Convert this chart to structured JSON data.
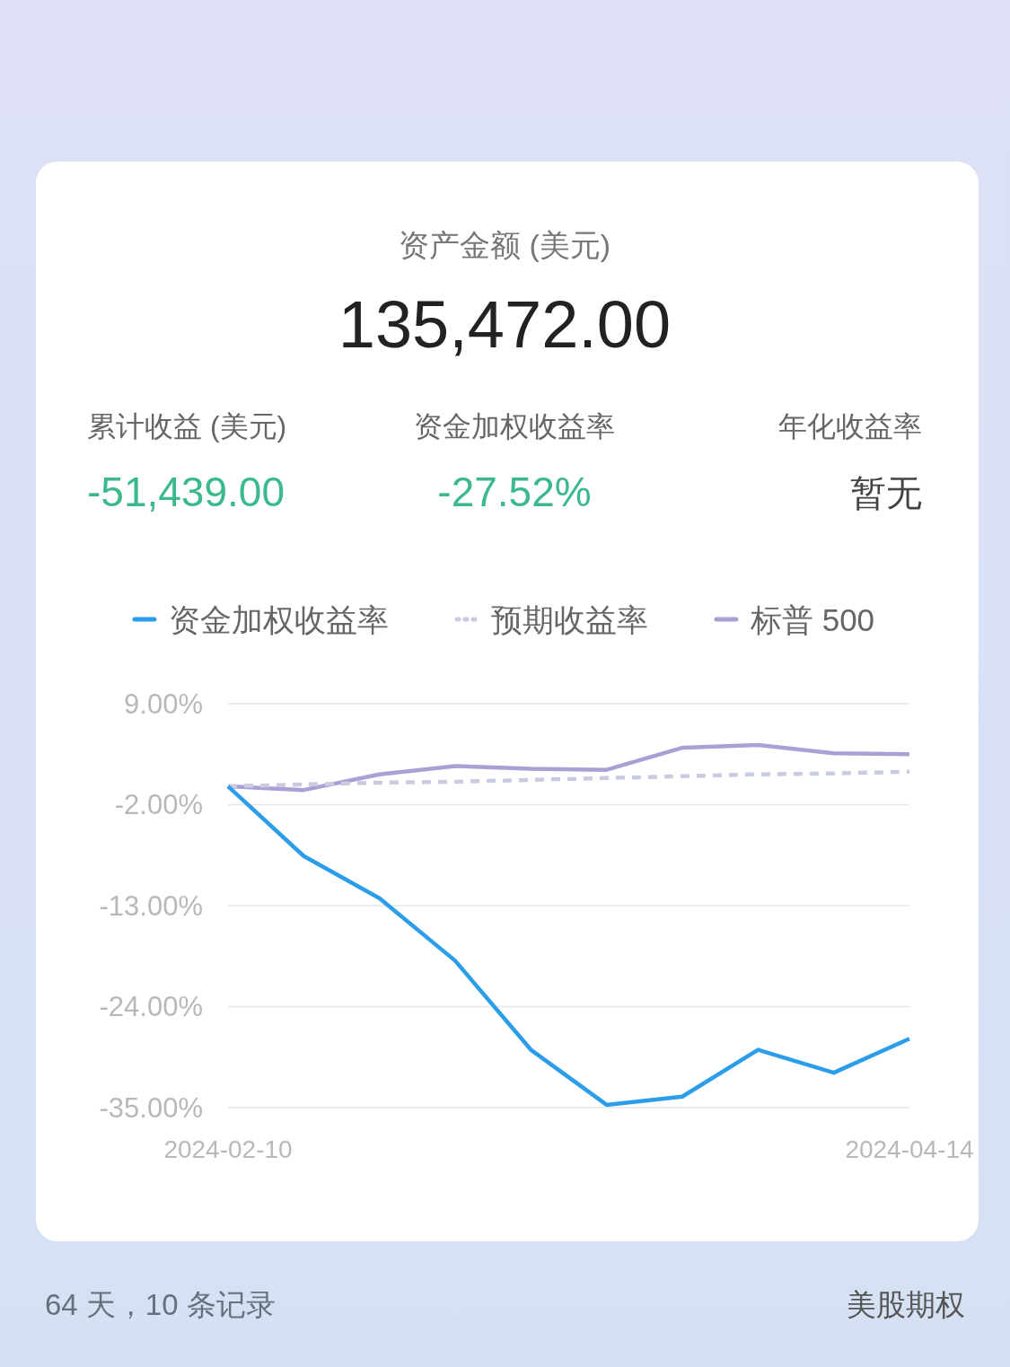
{
  "chart_data": [
    {
      "type": "other",
      "title": "资产金额 (美元)",
      "annotations": [
        "135,472.00",
        "累计收益 (美元)",
        "-51,439.00",
        "资金加权收益率",
        "-27.52%",
        "年化收益率",
        "暂无"
      ]
    },
    {
      "type": "line",
      "categories": [
        "2024-02-10",
        null,
        null,
        null,
        null,
        null,
        null,
        null,
        null,
        "2024-04-14"
      ],
      "ylim": [
        -35,
        9
      ],
      "yticks": [
        {
          "value": -35,
          "label": "-35.00%"
        },
        {
          "value": -24,
          "label": "-24.00%"
        },
        {
          "value": -13,
          "label": "-13.00%"
        },
        {
          "value": -2,
          "label": "-2.00%"
        },
        {
          "value": 9,
          "label": "9.00%"
        }
      ],
      "grid": "y",
      "legend": "top",
      "line_style": "solid",
      "series": [
        {
          "name": "资金加权收益率",
          "color": "#2b9de9",
          "values": [
            0,
            -7.6,
            -12.2,
            -19.0,
            -28.7,
            -34.7,
            -33.8,
            -28.7,
            -31.2,
            -27.5
          ]
        },
        {
          "name": "预期收益率",
          "color": "#c9cce0",
          "line_style": "dashed",
          "values": [
            0,
            0.2,
            0.4,
            0.5,
            0.7,
            0.9,
            1.1,
            1.3,
            1.4,
            1.6
          ]
        },
        {
          "name": "标普 500",
          "color": "#ab9fd6",
          "values": [
            0,
            -0.4,
            1.3,
            2.2,
            1.9,
            1.8,
            4.2,
            4.5,
            3.6,
            3.5
          ]
        }
      ],
      "annotations": [
        "64 天，10 条记录",
        "美股期权"
      ]
    }
  ]
}
